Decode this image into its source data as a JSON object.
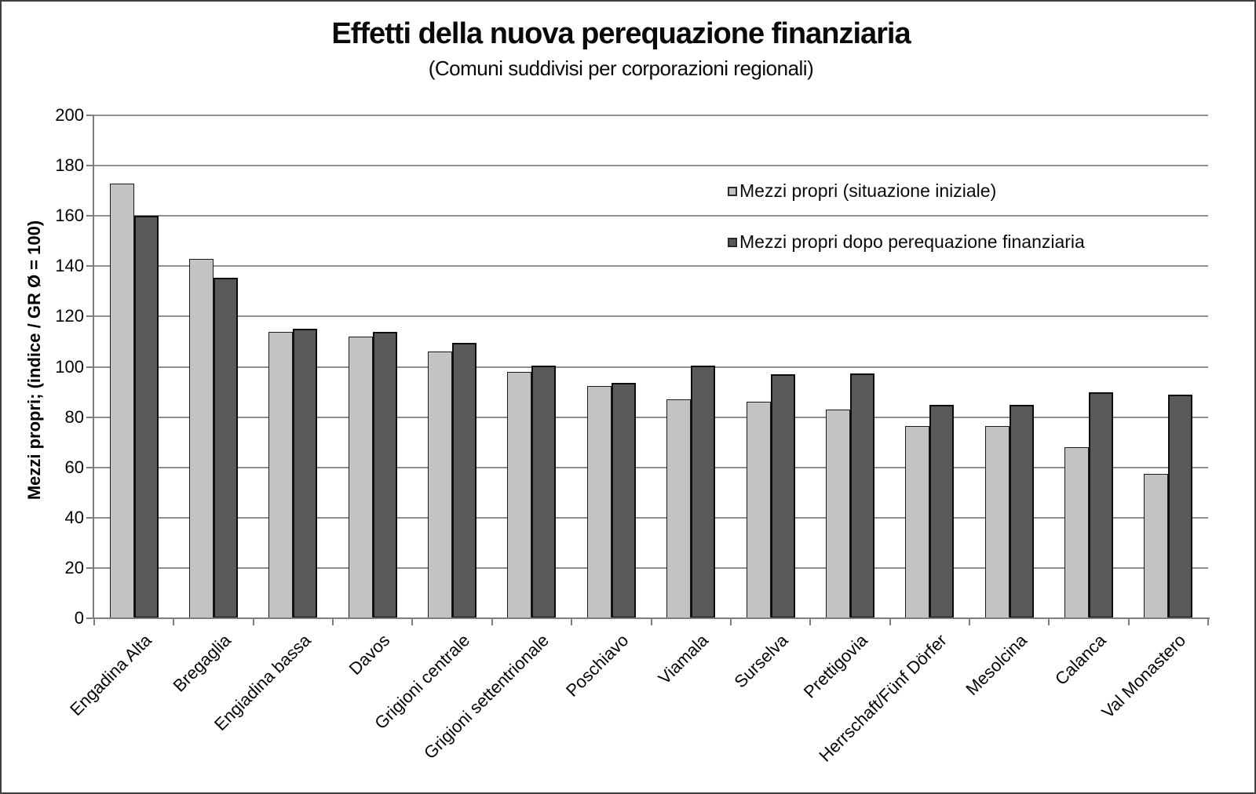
{
  "window": {
    "background": "#ffffff",
    "frame_border_color": "#3f3f3f"
  },
  "chart_data": {
    "type": "bar",
    "title": "Effetti della nuova perequazione finanziaria",
    "subtitle": "(Comuni suddivisi per corporazioni regionali)",
    "xlabel": "",
    "ylabel": "Mezzi propri; (indice / GR Ø = 100)",
    "ylim": [
      0,
      200
    ],
    "ytick_step": 20,
    "yticks": [
      0,
      20,
      40,
      60,
      80,
      100,
      120,
      140,
      160,
      180,
      200
    ],
    "grid": true,
    "legend_position": "inside-upper-right",
    "categories": [
      "Engadina Alta",
      "Bregaglia",
      "Engiadina bassa",
      "Davos",
      "Grigioni centrale",
      "Grigioni settentrionale",
      "Poschiavo",
      "Viamala",
      "Surselva",
      "Prettigovia",
      "Herrschaft/Fünf Dörfer",
      "Mesolcina",
      "Calanca",
      "Val Monastero"
    ],
    "series": [
      {
        "name": "Mezzi propri (situazione iniziale)",
        "color": "#c3c3c3",
        "values": [
          173,
          143,
          114,
          112,
          106,
          98,
          92.5,
          87,
          86,
          83,
          76.5,
          76.5,
          68,
          57.5
        ]
      },
      {
        "name": "Mezzi propri dopo perequazione finanziaria",
        "color": "#595959",
        "values": [
          160,
          135.5,
          115,
          114,
          109.5,
          100.5,
          93.5,
          100.5,
          97,
          97.5,
          85,
          85,
          90,
          89
        ]
      }
    ],
    "colors": {
      "gridline": "#8e8e8e",
      "axis": "#7e7e7e",
      "text": "#050505"
    }
  }
}
